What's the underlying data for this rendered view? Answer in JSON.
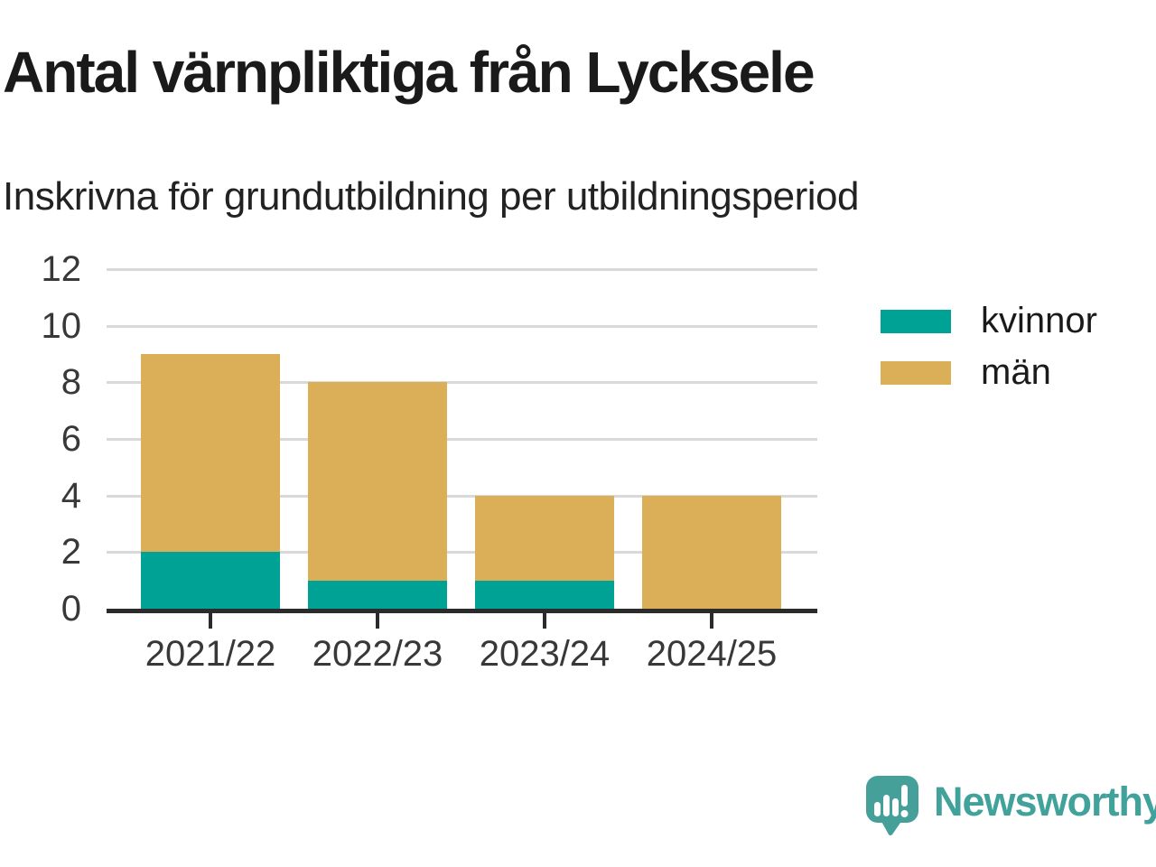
{
  "header": {
    "title": "Antal värnpliktiga från Lycksele",
    "subtitle": "Inskrivna för grundutbildning per utbildningsperiod"
  },
  "chart_data": {
    "type": "bar",
    "stacked": true,
    "title": "Antal värnpliktiga från Lycksele",
    "subtitle": "Inskrivna för grundutbildning per utbildningsperiod",
    "categories": [
      "2021/22",
      "2022/23",
      "2023/24",
      "2024/25"
    ],
    "series": [
      {
        "name": "kvinnor",
        "color": "#00a296",
        "values": [
          2,
          1,
          1,
          0
        ]
      },
      {
        "name": "män",
        "color": "#dbae58",
        "values": [
          7,
          7,
          3,
          4
        ]
      }
    ],
    "totals": [
      9,
      8,
      4,
      4
    ],
    "xlabel": "",
    "ylabel": "",
    "ylim": [
      0,
      12
    ],
    "yticks": [
      0,
      2,
      4,
      6,
      8,
      10,
      12
    ],
    "grid": true,
    "legend_position": "right"
  },
  "colors": {
    "kvinnor": "#00a296",
    "man": "#dbae58",
    "axis": "#2b2b2b",
    "gridline": "#d9d9d9",
    "tick_text": "#383838",
    "title_text": "#1a1a1a",
    "brand_teal": "#40a29b",
    "background": "#ffffff"
  },
  "branding": {
    "logo_text": "Newsworthy",
    "logo_icon": "bar-chart-speech-bubble-icon"
  }
}
